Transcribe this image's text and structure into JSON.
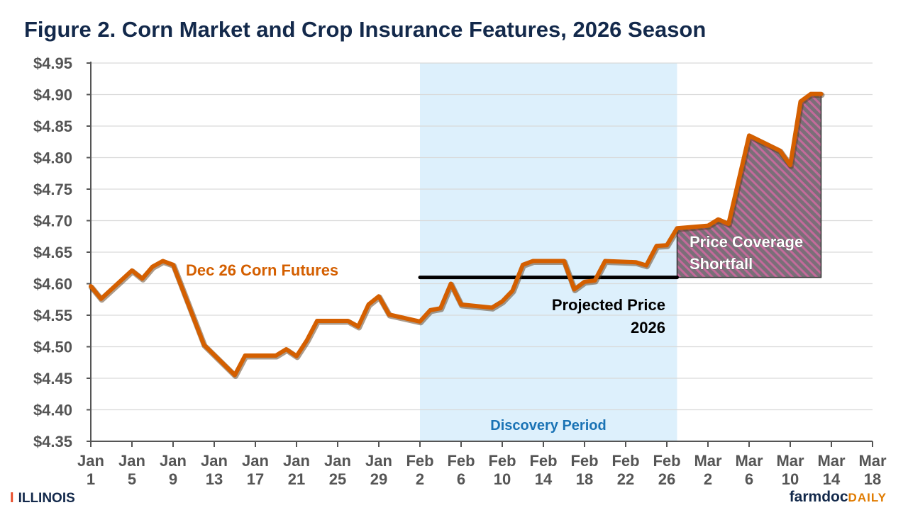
{
  "chart_data": {
    "type": "line",
    "title": "Figure 2. Corn Market and Crop Insurance Features, 2026 Season",
    "xlabel": "",
    "ylabel": "",
    "ylim": [
      4.35,
      4.95
    ],
    "yticks": [
      "$4.95",
      "$4.90",
      "$4.85",
      "$4.80",
      "$4.75",
      "$4.70",
      "$4.65",
      "$4.60",
      "$4.55",
      "$4.50",
      "$4.45",
      "$4.40",
      "$4.35"
    ],
    "xticks": [
      [
        "Jan",
        "1"
      ],
      [
        "Jan",
        "5"
      ],
      [
        "Jan",
        "9"
      ],
      [
        "Jan",
        "13"
      ],
      [
        "Jan",
        "17"
      ],
      [
        "Jan",
        "21"
      ],
      [
        "Jan",
        "25"
      ],
      [
        "Jan",
        "29"
      ],
      [
        "Feb",
        "2"
      ],
      [
        "Feb",
        "6"
      ],
      [
        "Feb",
        "10"
      ],
      [
        "Feb",
        "14"
      ],
      [
        "Feb",
        "18"
      ],
      [
        "Feb",
        "22"
      ],
      [
        "Feb",
        "26"
      ],
      [
        "Mar",
        "2"
      ],
      [
        "Mar",
        "6"
      ],
      [
        "Mar",
        "10"
      ],
      [
        "Mar",
        "14"
      ],
      [
        "Mar",
        "18"
      ]
    ],
    "xlim": [
      "2026-01-01",
      "2026-03-18"
    ],
    "grid": true,
    "series": [
      {
        "name": "Dec 26 Corn Futures",
        "color": "#d45f00",
        "points": [
          [
            "2026-01-01",
            4.596
          ],
          [
            "2026-01-02",
            4.576
          ],
          [
            "2026-01-05",
            4.621
          ],
          [
            "2026-01-06",
            4.608
          ],
          [
            "2026-01-07",
            4.627
          ],
          [
            "2026-01-08",
            4.636
          ],
          [
            "2026-01-09",
            4.63
          ],
          [
            "2026-01-12",
            4.503
          ],
          [
            "2026-01-15",
            4.455
          ],
          [
            "2026-01-16",
            4.486
          ],
          [
            "2026-01-19",
            4.486
          ],
          [
            "2026-01-20",
            4.496
          ],
          [
            "2026-01-21",
            4.485
          ],
          [
            "2026-01-22",
            4.51
          ],
          [
            "2026-01-23",
            4.541
          ],
          [
            "2026-01-26",
            4.541
          ],
          [
            "2026-01-27",
            4.532
          ],
          [
            "2026-01-28",
            4.567
          ],
          [
            "2026-01-29",
            4.58
          ],
          [
            "2026-01-30",
            4.551
          ],
          [
            "2026-02-02",
            4.54
          ],
          [
            "2026-02-03",
            4.558
          ],
          [
            "2026-02-04",
            4.561
          ],
          [
            "2026-02-05",
            4.6
          ],
          [
            "2026-02-06",
            4.567
          ],
          [
            "2026-02-09",
            4.562
          ],
          [
            "2026-02-10",
            4.572
          ],
          [
            "2026-02-11",
            4.589
          ],
          [
            "2026-02-12",
            4.63
          ],
          [
            "2026-02-13",
            4.636
          ],
          [
            "2026-02-16",
            4.636
          ],
          [
            "2026-02-17",
            4.591
          ],
          [
            "2026-02-18",
            4.603
          ],
          [
            "2026-02-19",
            4.605
          ],
          [
            "2026-02-20",
            4.636
          ],
          [
            "2026-02-23",
            4.634
          ],
          [
            "2026-02-24",
            4.629
          ],
          [
            "2026-02-25",
            4.66
          ],
          [
            "2026-02-26",
            4.661
          ],
          [
            "2026-02-27",
            4.688
          ],
          [
            "2026-03-02",
            4.692
          ],
          [
            "2026-03-03",
            4.702
          ],
          [
            "2026-03-04",
            4.695
          ],
          [
            "2026-03-06",
            4.835
          ],
          [
            "2026-03-09",
            4.811
          ],
          [
            "2026-03-10",
            4.788
          ],
          [
            "2026-03-11",
            4.889
          ],
          [
            "2026-03-12",
            4.901
          ],
          [
            "2026-03-13",
            4.901
          ]
        ]
      }
    ],
    "projected_price": {
      "label_line1": "Projected Price",
      "label_line2": "2026",
      "value": 4.61,
      "start": "2026-02-02",
      "end": "2026-02-27",
      "color": "#000000"
    },
    "discovery_period": {
      "label": "Discovery Period",
      "start": "2026-02-02",
      "end": "2026-02-27",
      "color": "#ddf0fc",
      "label_color": "#1a73b5"
    },
    "shortfall": {
      "label_line1": "Price Coverage",
      "label_line2": "Shortfall",
      "start": "2026-02-27",
      "end": "2026-03-13",
      "stripe_colors": [
        "#7a6f78",
        "#c46a9b"
      ]
    }
  },
  "footer": {
    "left_logo_letter": "I",
    "left_logo_text": "ILLINOIS",
    "right_logo_main": "farmdoc",
    "right_logo_accent": "DAILY"
  }
}
